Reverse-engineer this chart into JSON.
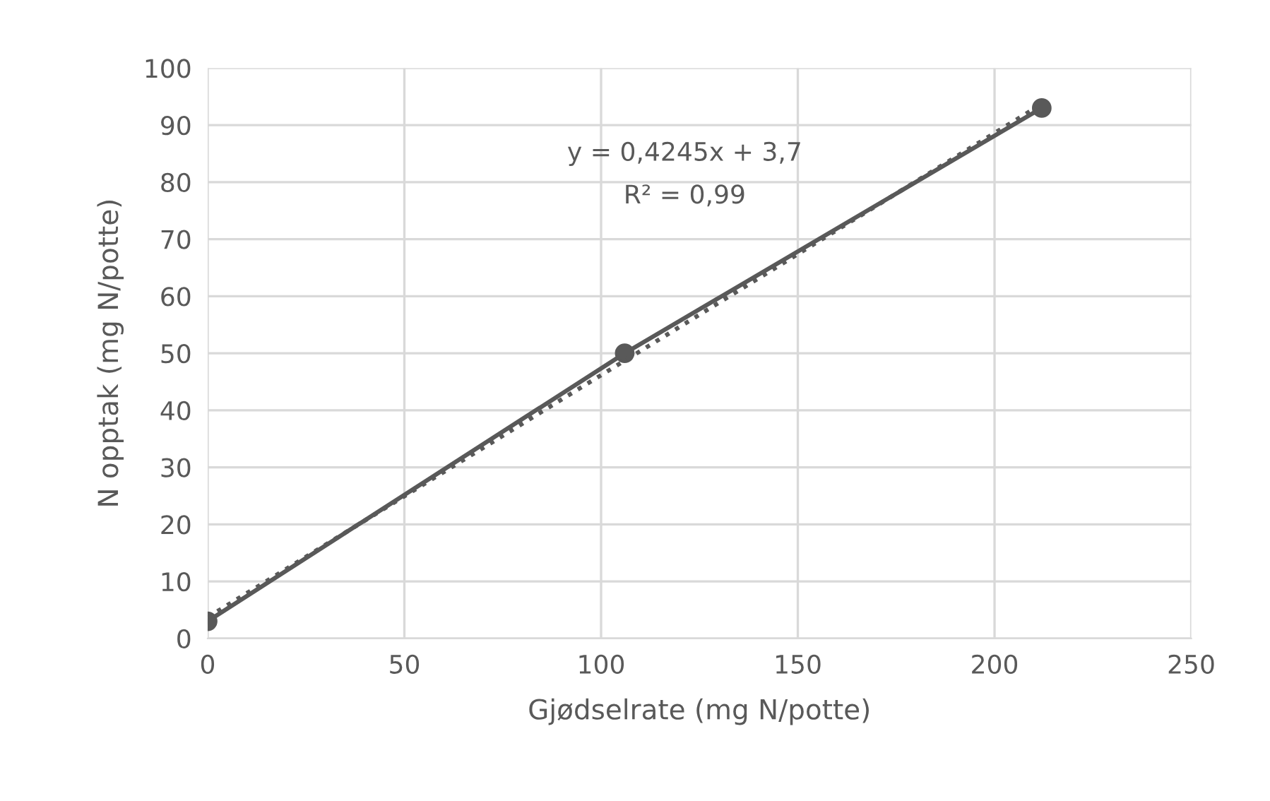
{
  "chart_data": {
    "type": "line",
    "xlabel": "Gjødselrate (mg N/potte)",
    "ylabel": "N opptak (mg N/potte)",
    "xlim": [
      0,
      250
    ],
    "xticks": [
      0,
      50,
      100,
      150,
      200,
      250
    ],
    "ylim": [
      0,
      100
    ],
    "yticks": [
      0,
      10,
      20,
      30,
      40,
      50,
      60,
      70,
      80,
      90,
      100
    ],
    "grid": true,
    "legend": false,
    "series": [
      {
        "color": "#595959",
        "x": [
          0,
          106,
          212
        ],
        "values": [
          3,
          50,
          93
        ],
        "marker": "circle",
        "line_style": "solid"
      },
      {
        "type": "line",
        "color": "#595959",
        "x": [
          0,
          212
        ],
        "values": [
          3.7,
          93.7
        ],
        "marker": "none",
        "line_style": "dotted"
      }
    ],
    "annotations": [
      "y = 0,4245x + 3,7",
      "R² = 0,99"
    ]
  }
}
